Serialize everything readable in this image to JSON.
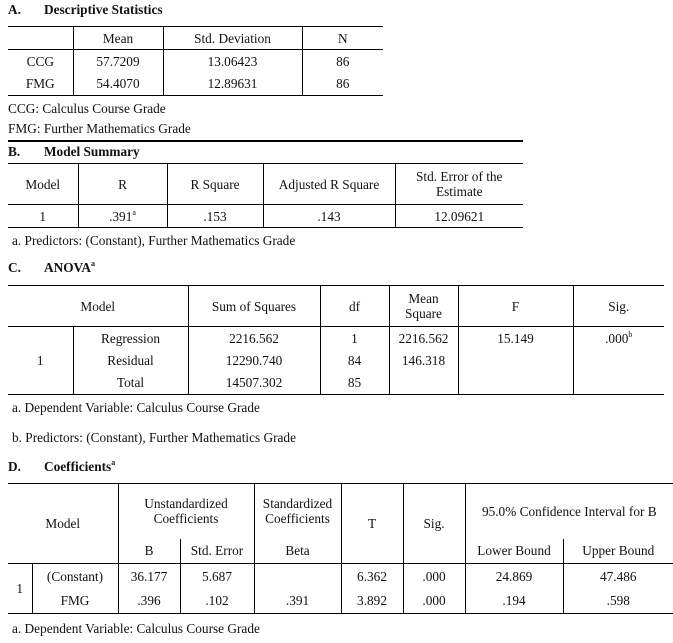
{
  "descriptive": {
    "label": "A.",
    "title": "Descriptive Statistics",
    "headers": [
      "",
      "Mean",
      "Std. Deviation",
      "N"
    ],
    "rows": [
      [
        "CCG",
        "57.7209",
        "13.06423",
        "86"
      ],
      [
        "FMG",
        "54.4070",
        "12.89631",
        "86"
      ]
    ],
    "notes": [
      "CCG: Calculus Course Grade",
      "FMG: Further Mathematics Grade"
    ]
  },
  "model_summary": {
    "label": "B.",
    "title": "Model Summary",
    "headers": [
      "Model",
      "R",
      "R Square",
      "Adjusted R Square",
      "Std. Error of the Estimate"
    ],
    "row": {
      "model": "1",
      "r": ".391",
      "r_sup": "a",
      "r_square": ".153",
      "adj_r_square": ".143",
      "std_error": "12.09621"
    },
    "note": "a. Predictors: (Constant), Further Mathematics Grade"
  },
  "anova": {
    "label": "C.",
    "title": "ANOVA",
    "title_sup": "a",
    "headers": [
      "Model",
      "Sum of Squares",
      "df",
      "Mean Square",
      "F",
      "Sig."
    ],
    "model": "1",
    "rows": [
      {
        "name": "Regression",
        "ss": "2216.562",
        "df": "1",
        "ms": "2216.562",
        "f": "15.149",
        "sig": ".000",
        "sig_sup": "b"
      },
      {
        "name": "Residual",
        "ss": "12290.740",
        "df": "84",
        "ms": "146.318"
      },
      {
        "name": "Total",
        "ss": "14507.302",
        "df": "85"
      }
    ],
    "notes": [
      "a. Dependent Variable: Calculus Course Grade",
      "b. Predictors: (Constant), Further Mathematics Grade"
    ]
  },
  "coefficients": {
    "label": "D.",
    "title": "Coefficients",
    "title_sup": "a",
    "headers": {
      "model": "Model",
      "unstd": "Unstandardized Coefficients",
      "std": "Standardized Coefficients",
      "t": "T",
      "sig": "Sig.",
      "ci": "95.0% Confidence Interval for B",
      "b": "B",
      "se": "Std. Error",
      "beta": "Beta",
      "lower": "Lower Bound",
      "upper": "Upper Bound"
    },
    "model": "1",
    "rows": [
      {
        "name": "(Constant)",
        "b": "36.177",
        "se": "5.687",
        "beta": "",
        "t": "6.362",
        "sig": ".000",
        "lower": "24.869",
        "upper": "47.486"
      },
      {
        "name": "FMG",
        "b": ".396",
        "se": ".102",
        "beta": ".391",
        "t": "3.892",
        "sig": ".000",
        "lower": ".194",
        "upper": ".598"
      }
    ],
    "note": "a. Dependent Variable: Calculus Course Grade"
  }
}
